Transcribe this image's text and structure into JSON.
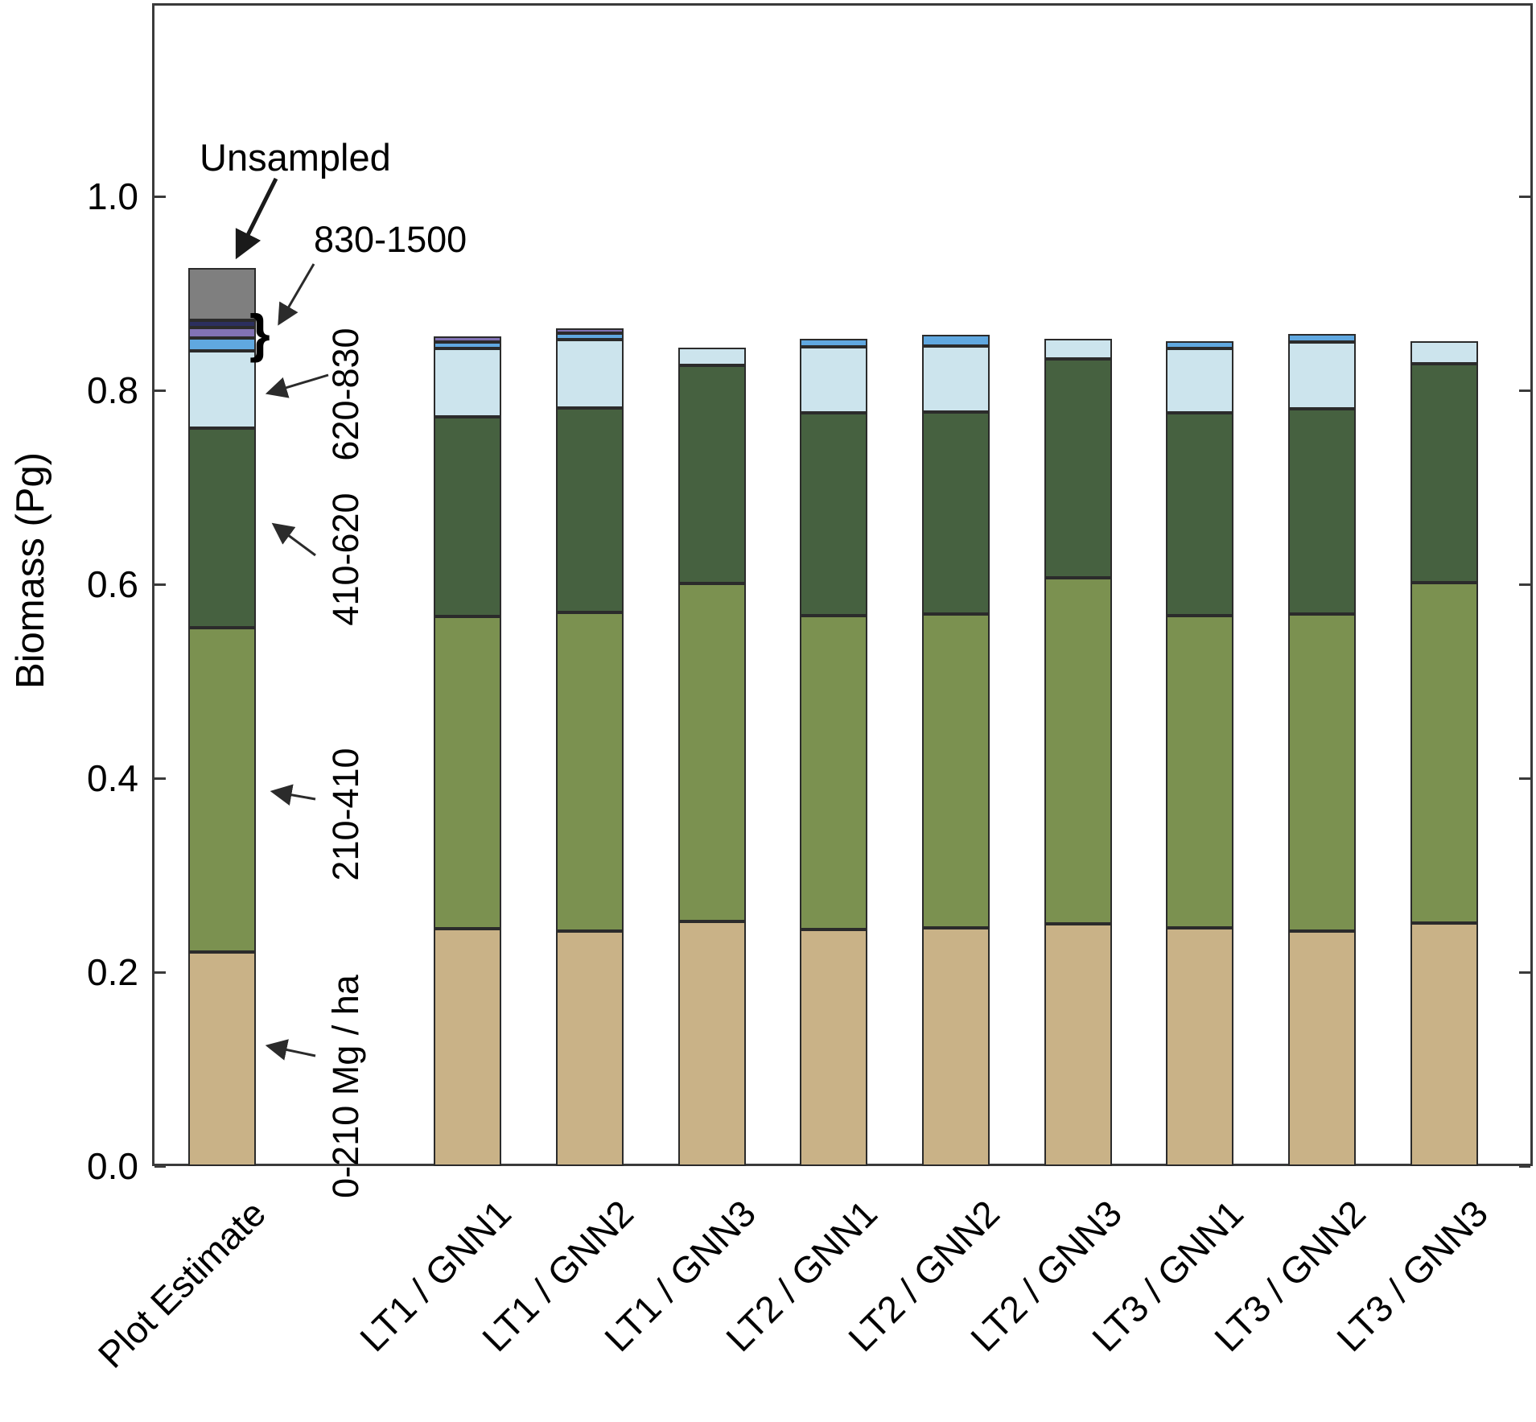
{
  "chart_data": {
    "type": "bar",
    "stacked": true,
    "title": "",
    "ylabel": "Biomass (Pg)",
    "xlabel": "",
    "ylim": [
      0.0,
      1.2
    ],
    "ytick_labels": [
      "0.0",
      "0.2",
      "0.4",
      "0.6",
      "0.8",
      "1.0"
    ],
    "ytick_values": [
      0.0,
      0.2,
      0.4,
      0.6,
      0.8,
      1.0
    ],
    "grid": false,
    "legend_position": "none",
    "categories": [
      "Plot Estimate",
      "LT1 / GNN1",
      "LT1 / GNN2",
      "LT1 / GNN3",
      "LT2 / GNN1",
      "LT2 / GNN2",
      "LT2 / GNN3",
      "LT3 / GNN1",
      "LT3 / GNN2",
      "LT3 / GNN3"
    ],
    "series": [
      {
        "name": "0-210 Mg / ha",
        "color": "#c9b287",
        "values": [
          0.221,
          0.245,
          0.242,
          0.252,
          0.244,
          0.246,
          0.25,
          0.246,
          0.242,
          0.251
        ]
      },
      {
        "name": "210-410",
        "color": "#7b9150",
        "values": [
          0.334,
          0.322,
          0.329,
          0.349,
          0.324,
          0.323,
          0.357,
          0.322,
          0.327,
          0.351
        ]
      },
      {
        "name": "410-620",
        "color": "#466140",
        "values": [
          0.206,
          0.206,
          0.211,
          0.225,
          0.209,
          0.209,
          0.225,
          0.209,
          0.212,
          0.225
        ]
      },
      {
        "name": "620-830",
        "color": "#cce4ed",
        "values": [
          0.08,
          0.07,
          0.07,
          0.018,
          0.068,
          0.068,
          0.021,
          0.066,
          0.069,
          0.024
        ]
      },
      {
        "name": "830-1500 lower band",
        "color": "#60a8e0",
        "values": [
          0.013,
          0.007,
          0.007,
          0,
          0.008,
          0.011,
          0,
          0.008,
          0.008,
          0
        ]
      },
      {
        "name": "830-1500 middle band",
        "color": "#8273b5",
        "values": [
          0.011,
          0.006,
          0.005,
          0,
          0,
          0,
          0,
          0,
          0,
          0
        ]
      },
      {
        "name": "830-1500 upper band",
        "color": "#2c2f5e",
        "values": [
          0.007,
          0,
          0,
          0,
          0,
          0,
          0,
          0,
          0,
          0
        ]
      },
      {
        "name": "Unsampled",
        "color": "#7f7f7f",
        "values": [
          0.054,
          0,
          0,
          0,
          0,
          0,
          0,
          0,
          0,
          0
        ]
      }
    ],
    "class_labels": [
      {
        "text": "0-210 Mg / ha"
      },
      {
        "text": "210-410"
      },
      {
        "text": "410-620"
      },
      {
        "text": "620-830"
      }
    ]
  },
  "annotations": {
    "unsampled": "Unsampled",
    "band_830_1500": "830-1500",
    "brace": "}"
  }
}
